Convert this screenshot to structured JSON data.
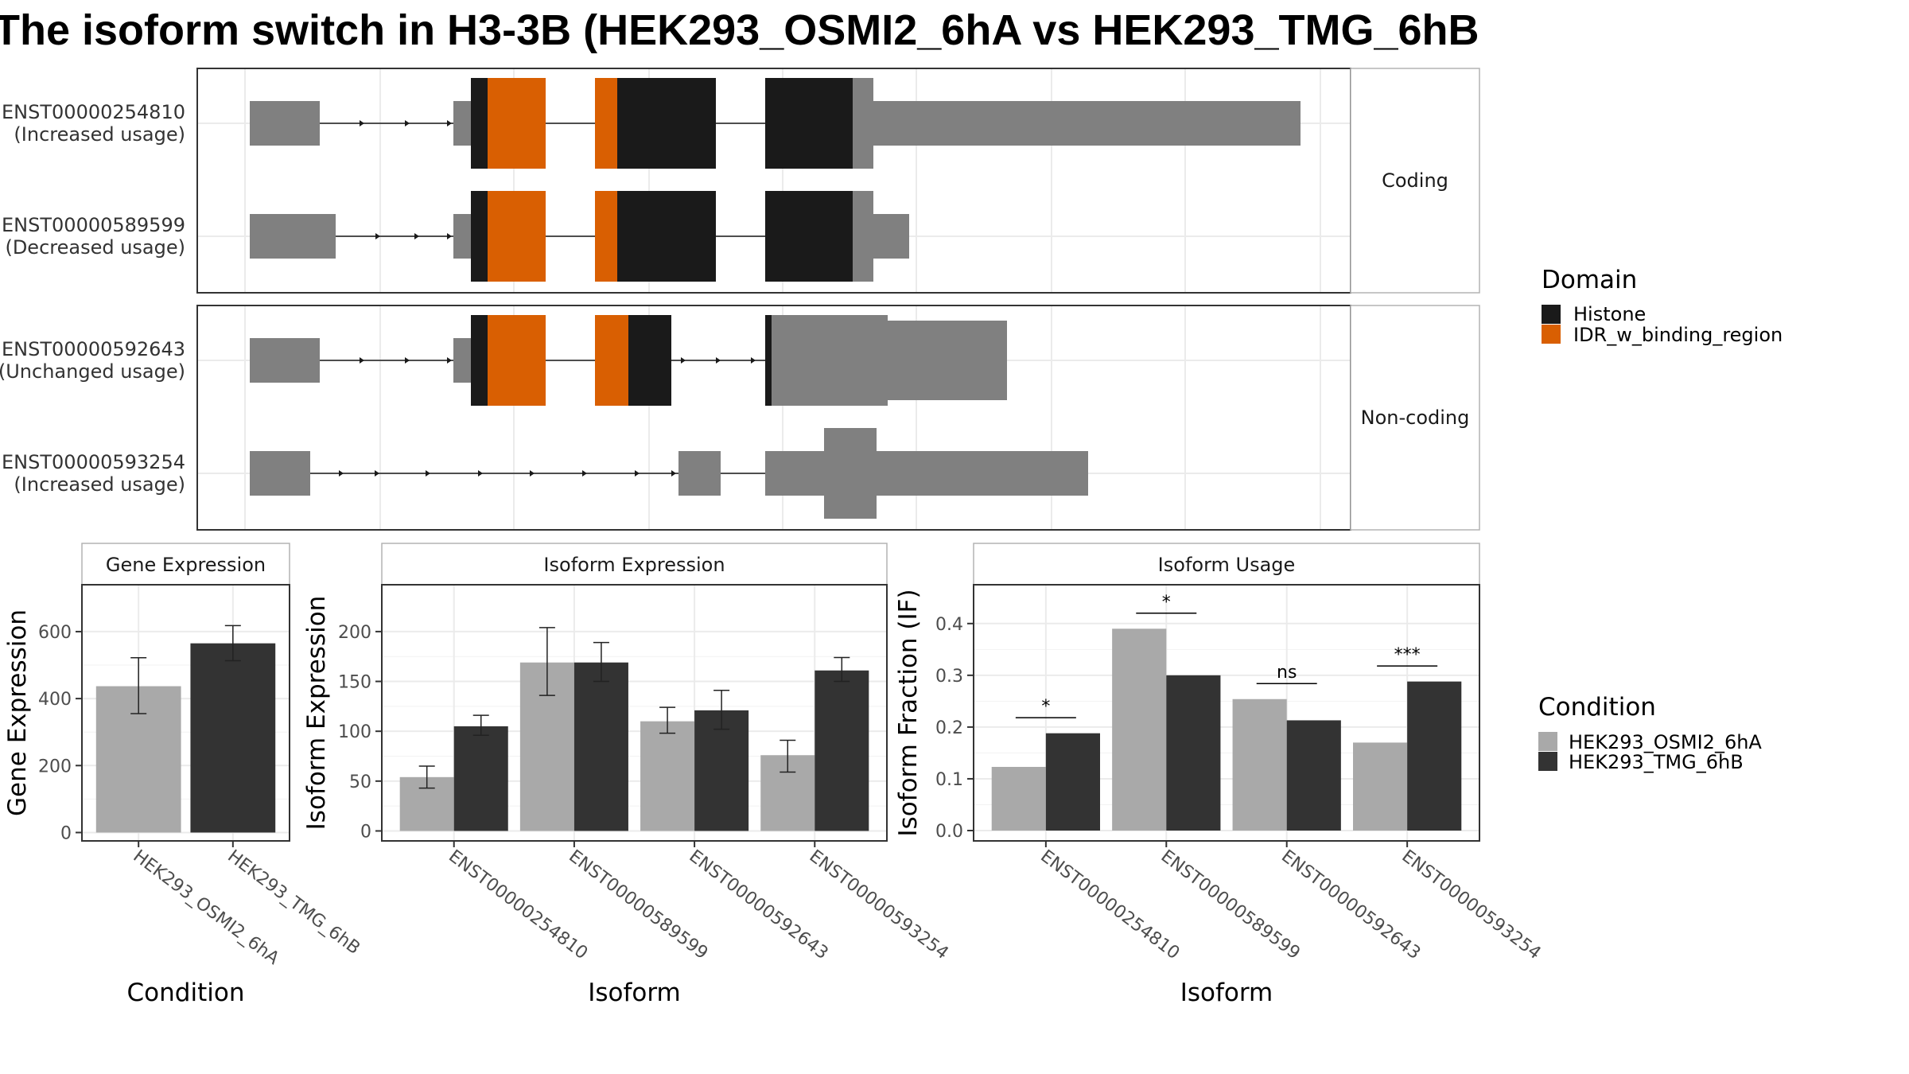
{
  "title": "The isoform switch in H3-3B (HEK293_OSMI2_6hA vs HEK293_TMG_6hB",
  "colors": {
    "histone": "#1a1a1a",
    "idr": "#d95f02",
    "utr": "#808080",
    "condition1": "#a9a9a9",
    "condition2": "#333333"
  },
  "panels": {
    "gene_expression": {
      "strip": "Gene Expression",
      "ylabel": "Gene Expression",
      "xlabel": "Condition"
    },
    "isoform_expression": {
      "strip": "Isoform Expression",
      "ylabel": "Isoform Expression",
      "xlabel": "Isoform"
    },
    "isoform_usage": {
      "strip": "Isoform Usage",
      "ylabel": "Isoform Fraction (IF)",
      "xlabel": "Isoform"
    }
  },
  "structure": {
    "facets": [
      {
        "label": "Coding",
        "transcripts": [
          {
            "id": "ENST00000254810",
            "usage": "(Increased usage)"
          },
          {
            "id": "ENST00000589599",
            "usage": "(Decreased usage)"
          }
        ]
      },
      {
        "label": "Non-coding",
        "transcripts": [
          {
            "id": "ENST00000592643",
            "usage": "(Unchanged usage)"
          },
          {
            "id": "ENST00000593254",
            "usage": "(Increased usage)"
          }
        ]
      }
    ]
  },
  "legends": {
    "domain": {
      "title": "Domain",
      "items": [
        "Histone",
        "IDR_w_binding_region"
      ]
    },
    "condition": {
      "title": "Condition",
      "items": [
        "HEK293_OSMI2_6hA",
        "HEK293_TMG_6hB"
      ]
    }
  },
  "chart_data": [
    {
      "type": "bar",
      "title": "Gene Expression",
      "xlabel": "Condition",
      "ylabel": "Gene Expression",
      "categories": [
        "HEK293_OSMI2_6hA",
        "HEK293_TMG_6hB"
      ],
      "values": [
        437,
        565
      ],
      "error_low": [
        355,
        513
      ],
      "error_high": [
        522,
        618
      ],
      "ylim": [
        -25,
        740
      ],
      "yticks": [
        0,
        200,
        400,
        600
      ]
    },
    {
      "type": "bar",
      "title": "Isoform Expression",
      "xlabel": "Isoform",
      "ylabel": "Isoform Expression",
      "categories": [
        "ENST00000254810",
        "ENST00000589599",
        "ENST00000592643",
        "ENST00000593254"
      ],
      "series": [
        {
          "name": "HEK293_OSMI2_6hA",
          "values": [
            54,
            169,
            110,
            76
          ],
          "error_low": [
            43,
            136,
            98,
            59
          ],
          "error_high": [
            65,
            204,
            124,
            91
          ]
        },
        {
          "name": "HEK293_TMG_6hB",
          "values": [
            105,
            169,
            121,
            161
          ],
          "error_low": [
            96,
            150,
            102,
            150
          ],
          "error_high": [
            116,
            189,
            141,
            174
          ]
        }
      ],
      "ylim": [
        -10,
        247
      ],
      "yticks": [
        0,
        50,
        100,
        150,
        200
      ]
    },
    {
      "type": "bar",
      "title": "Isoform Usage",
      "xlabel": "Isoform",
      "ylabel": "Isoform Fraction (IF)",
      "categories": [
        "ENST00000254810",
        "ENST00000589599",
        "ENST00000592643",
        "ENST00000593254"
      ],
      "series": [
        {
          "name": "HEK293_OSMI2_6hA",
          "values": [
            0.123,
            0.39,
            0.254,
            0.17
          ]
        },
        {
          "name": "HEK293_TMG_6hB",
          "values": [
            0.188,
            0.3,
            0.213,
            0.288
          ]
        }
      ],
      "significance": [
        "*",
        "*",
        "ns",
        "***"
      ],
      "ylim": [
        -0.02,
        0.475
      ],
      "yticks": [
        "0.0",
        "0.1",
        "0.2",
        "0.3",
        "0.4"
      ]
    }
  ]
}
